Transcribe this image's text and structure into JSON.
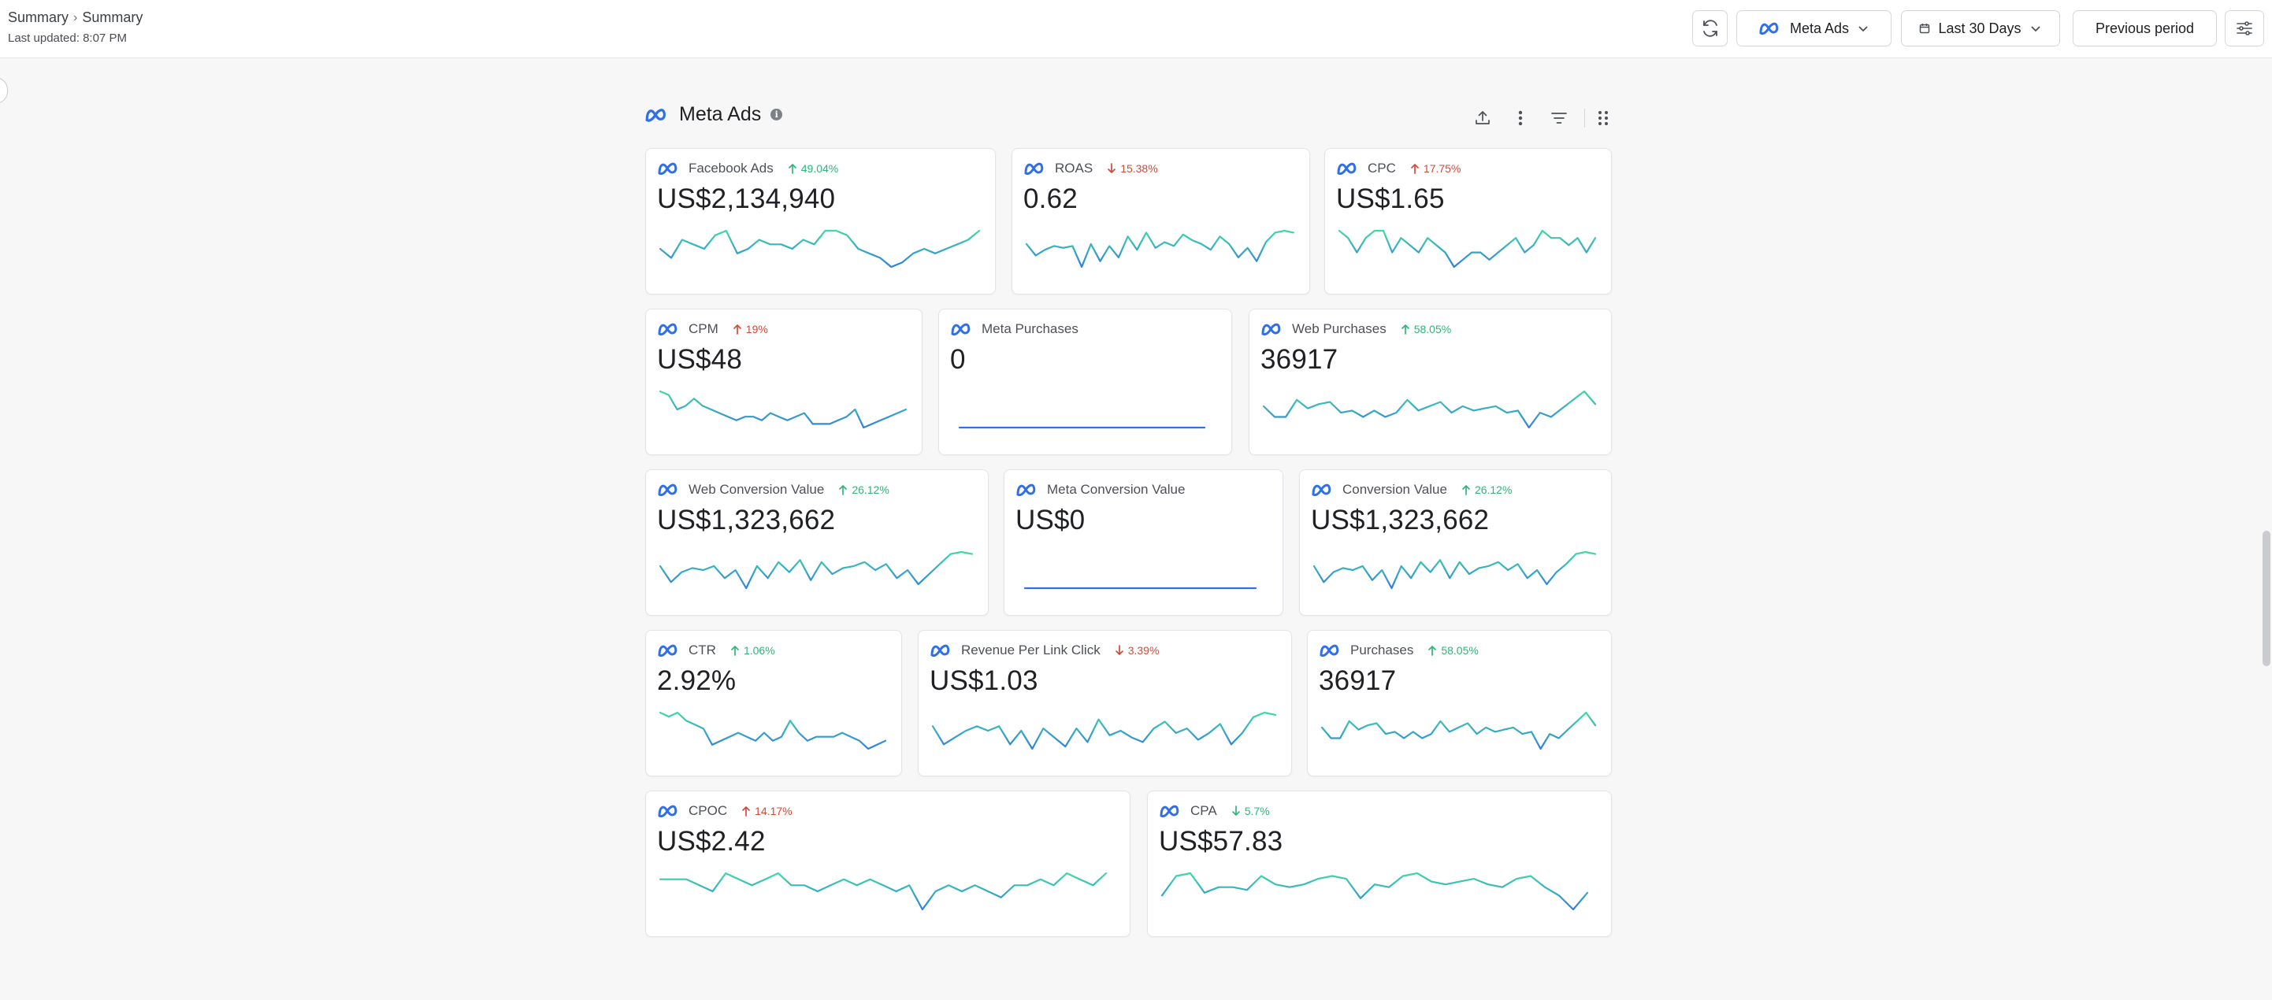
{
  "header": {
    "breadcrumb": [
      "Summary",
      "Summary"
    ],
    "last_updated": "Last updated: 8:07 PM",
    "source_label": "Meta Ads",
    "date_range_label": "Last 30 Days",
    "compare_label": "Previous period"
  },
  "section": {
    "title": "Meta Ads",
    "info": "i"
  },
  "colors": {
    "good": "#2fb57a",
    "bad": "#d24a3a",
    "line_start": "#2f7fe0",
    "line_end": "#3fd9a4",
    "meta_blue": "#2f6fe8"
  },
  "cards": [
    {
      "id": "facebook-ads",
      "title": "Facebook Ads",
      "value": "US$2,134,940",
      "delta": "49.04%",
      "direction": "up",
      "sentiment": "good",
      "series": [
        11,
        9,
        13,
        12,
        11,
        14,
        15,
        10,
        11,
        13,
        12,
        12,
        11,
        13,
        12,
        15,
        15,
        14,
        11,
        10,
        9,
        7,
        8,
        10,
        11,
        10,
        11,
        12,
        13,
        15
      ]
    },
    {
      "id": "roas",
      "title": "ROAS",
      "value": "0.62",
      "delta": "15.38%",
      "direction": "down",
      "sentiment": "bad",
      "series": [
        14,
        8,
        11,
        13,
        12,
        13,
        2,
        14,
        5,
        13,
        7,
        18,
        11,
        20,
        12,
        15,
        13,
        19,
        16,
        14,
        11,
        18,
        14,
        7,
        12,
        5,
        15,
        20,
        21,
        20
      ]
    },
    {
      "id": "cpc",
      "title": "CPC",
      "value": "US$1.65",
      "delta": "17.75%",
      "direction": "up",
      "sentiment": "bad",
      "series": [
        14,
        13,
        11,
        13,
        14,
        14,
        11,
        13,
        12,
        11,
        13,
        12,
        11,
        9,
        10,
        11,
        11,
        10,
        11,
        12,
        13,
        11,
        12,
        14,
        13,
        13,
        12,
        13,
        11,
        13
      ]
    },
    {
      "id": "cpm",
      "title": "CPM",
      "value": "US$48",
      "delta": "19%",
      "direction": "up",
      "sentiment": "bad",
      "series": [
        17,
        16,
        12,
        13,
        15,
        13,
        12,
        11,
        10,
        9,
        10,
        10,
        9,
        11,
        10,
        9,
        10,
        11,
        8,
        8,
        8,
        9,
        10,
        12,
        7,
        8,
        9,
        10,
        11,
        12
      ]
    },
    {
      "id": "meta-purchases",
      "title": "Meta Purchases",
      "value": "0",
      "delta": "",
      "direction": "",
      "sentiment": "",
      "series": [
        0,
        0,
        0,
        0,
        0,
        0,
        0,
        0,
        0,
        0,
        0,
        0,
        0,
        0,
        0,
        0,
        0,
        0,
        0,
        0,
        0,
        0,
        0,
        0,
        0,
        0,
        0,
        0,
        0,
        0
      ]
    },
    {
      "id": "web-purchases",
      "title": "Web Purchases",
      "value": "36917",
      "delta": "58.05%",
      "direction": "up",
      "sentiment": "good",
      "series": [
        14,
        9,
        9,
        17,
        13,
        15,
        16,
        11,
        12,
        9,
        12,
        9,
        11,
        17,
        12,
        14,
        16,
        11,
        14,
        12,
        13,
        14,
        11,
        12,
        4,
        11,
        9,
        13,
        17,
        21,
        15
      ]
    },
    {
      "id": "web-conversion-value",
      "title": "Web Conversion Value",
      "value": "US$1,323,662",
      "delta": "26.12%",
      "direction": "up",
      "sentiment": "good",
      "series": [
        14,
        6,
        11,
        13,
        12,
        14,
        8,
        12,
        3,
        14,
        8,
        16,
        11,
        17,
        7,
        16,
        10,
        13,
        14,
        16,
        12,
        15,
        8,
        12,
        5,
        10,
        15,
        20,
        21,
        20
      ]
    },
    {
      "id": "meta-conversion-value",
      "title": "Meta Conversion Value",
      "value": "US$0",
      "delta": "",
      "direction": "",
      "sentiment": "",
      "series": [
        0,
        0,
        0,
        0,
        0,
        0,
        0,
        0,
        0,
        0,
        0,
        0,
        0,
        0,
        0,
        0,
        0,
        0,
        0,
        0,
        0,
        0,
        0,
        0,
        0,
        0,
        0,
        0,
        0,
        0
      ]
    },
    {
      "id": "conversion-value",
      "title": "Conversion Value",
      "value": "US$1,323,662",
      "delta": "26.12%",
      "direction": "up",
      "sentiment": "good",
      "series": [
        14,
        6,
        11,
        13,
        12,
        14,
        7,
        12,
        3,
        14,
        8,
        16,
        11,
        17,
        8,
        16,
        10,
        13,
        14,
        16,
        12,
        15,
        8,
        12,
        5,
        11,
        15,
        20,
        21,
        20
      ]
    },
    {
      "id": "ctr",
      "title": "CTR",
      "value": "2.92%",
      "delta": "1.06%",
      "direction": "up",
      "sentiment": "good",
      "series": [
        15,
        14,
        15,
        13,
        12,
        11,
        7,
        8,
        9,
        10,
        9,
        8,
        10,
        8,
        9,
        13,
        10,
        8,
        9,
        9,
        9,
        10,
        9,
        8,
        6,
        7,
        8
      ]
    },
    {
      "id": "revenue-per-link-click",
      "title": "Revenue Per Link Click",
      "value": "US$1.03",
      "delta": "3.39%",
      "direction": "down",
      "sentiment": "bad",
      "series": [
        15,
        7,
        10,
        13,
        15,
        13,
        15,
        7,
        13,
        5,
        14,
        10,
        6,
        14,
        8,
        18,
        11,
        13,
        10,
        8,
        14,
        17,
        12,
        14,
        9,
        12,
        16,
        7,
        12,
        19,
        21,
        20
      ]
    },
    {
      "id": "purchases",
      "title": "Purchases",
      "value": "36917",
      "delta": "58.05%",
      "direction": "up",
      "sentiment": "good",
      "series": [
        14,
        9,
        9,
        17,
        13,
        15,
        16,
        11,
        12,
        9,
        12,
        9,
        11,
        17,
        12,
        14,
        16,
        11,
        14,
        12,
        13,
        14,
        11,
        12,
        4,
        11,
        9,
        13,
        17,
        21,
        15
      ]
    },
    {
      "id": "cpoc",
      "title": "CPOC",
      "value": "US$2.42",
      "delta": "14.17%",
      "direction": "up",
      "sentiment": "bad",
      "series": [
        11,
        11,
        11,
        10,
        9,
        12,
        11,
        10,
        11,
        12,
        10,
        10,
        9,
        10,
        11,
        10,
        11,
        10,
        9,
        10,
        6,
        9,
        10,
        9,
        10,
        9,
        8,
        10,
        10,
        11,
        10,
        12,
        11,
        10,
        12
      ]
    },
    {
      "id": "cpa",
      "title": "CPA",
      "value": "US$57.83",
      "delta": "5.7%",
      "direction": "down",
      "sentiment": "good",
      "series": [
        9,
        16,
        17,
        10,
        12,
        12,
        11,
        16,
        13,
        12,
        13,
        15,
        16,
        15,
        8,
        13,
        12,
        16,
        17,
        14,
        13,
        14,
        15,
        13,
        12,
        15,
        16,
        12,
        9,
        4,
        10
      ]
    }
  ]
}
